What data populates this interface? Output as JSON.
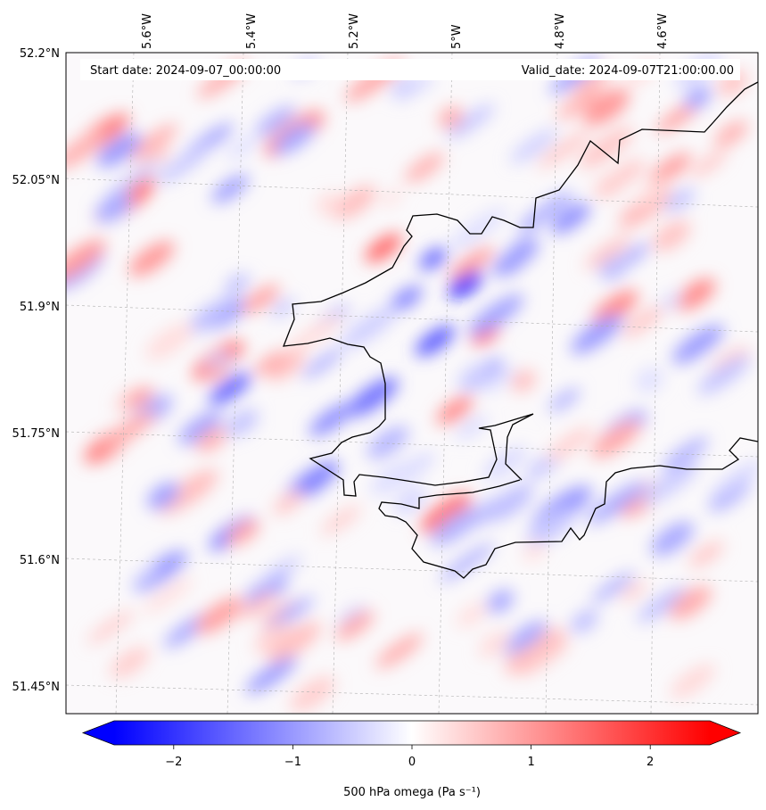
{
  "map": {
    "start_date": "Start date: 2024-09-07_00:00:00",
    "valid_date": "Valid_date: 2024-09-07T21:00:00.00",
    "lon_labels": [
      "5.6°W",
      "5.4°W",
      "5.2°W",
      "5°W",
      "4.8°W",
      "4.6°W"
    ],
    "lat_labels": [
      "52.2°N",
      "52.05°N",
      "51.9°N",
      "51.75°N",
      "51.6°N",
      "51.45°N"
    ],
    "field": "500 hPa omega",
    "colormap": "bwr"
  },
  "colorbar": {
    "label": "500 hPa omega (Pa s⁻¹)",
    "ticks": [
      "−2",
      "−1",
      "0",
      "1",
      "2"
    ],
    "tick_values": [
      -2,
      -1,
      0,
      1,
      2
    ],
    "range": [
      -2.5,
      2.5
    ],
    "extend": "both",
    "colors": {
      "min": "#0000ff",
      "mid": "#ffffff",
      "max": "#ff0000"
    }
  }
}
